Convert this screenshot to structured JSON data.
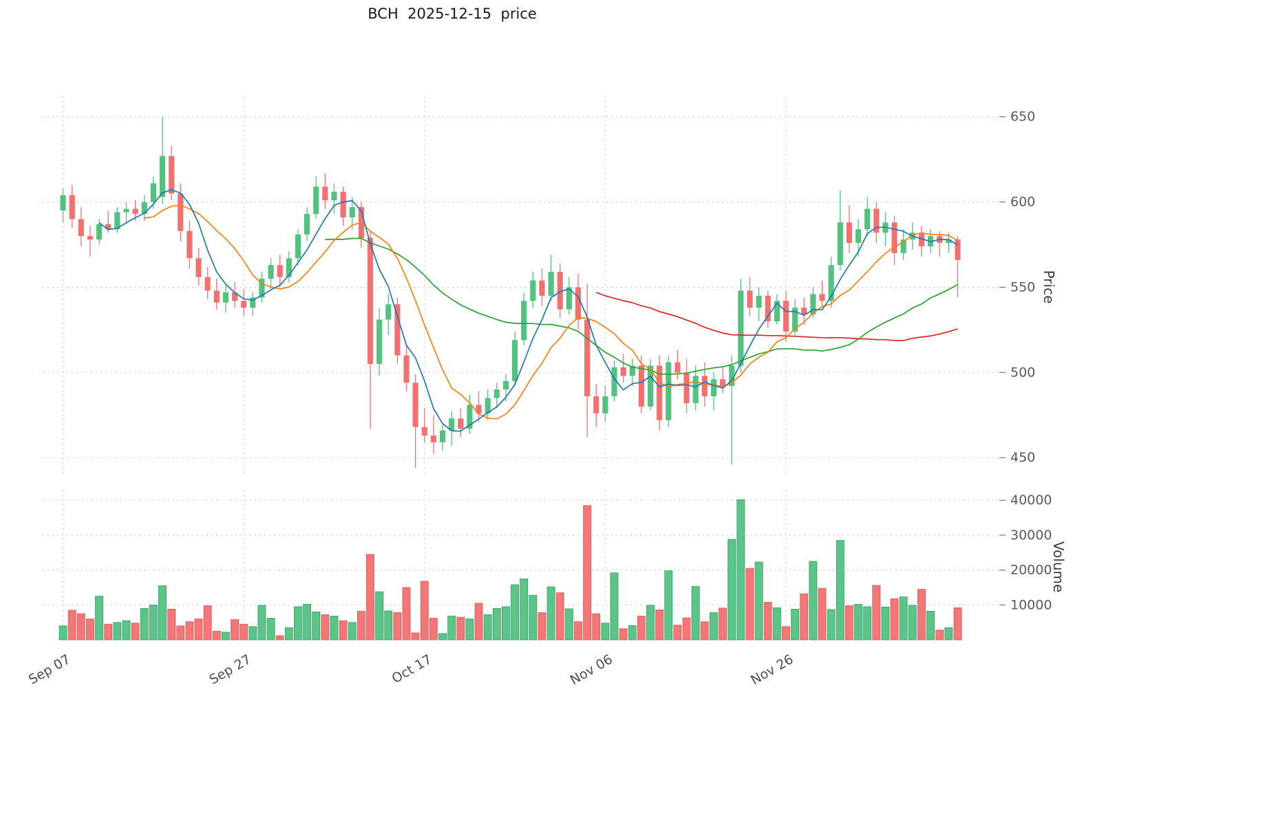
{
  "title": "BCH  2025-12-15  price",
  "colors": {
    "background": "#ffffff",
    "up": "#53c17f",
    "down": "#f37070",
    "up_edge": "#2a9d63",
    "down_edge": "#d25555",
    "grid": "#c9c9c9",
    "tick_text": "#595959",
    "ma_blue": "#1f77b4",
    "ma_orange": "#ff7f0e",
    "ma_green": "#2ca02c",
    "ma_red": "#d62728"
  },
  "chart_data": {
    "type": "candlestick",
    "title": "BCH  2025-12-15  price",
    "symbol": "BCH",
    "as_of": "2025-12-15",
    "start_date": "2025-09-07",
    "end_date": "2025-12-15",
    "freq": "daily",
    "price_axis": {
      "label": "Price",
      "ticks": [
        450,
        500,
        550,
        600,
        650
      ],
      "range": [
        440,
        662
      ]
    },
    "volume_axis": {
      "label": "Volume",
      "ticks": [
        10000,
        20000,
        30000,
        40000
      ],
      "range": [
        0,
        43000
      ]
    },
    "x_axis": {
      "ticks": [
        {
          "label": "Sep 07",
          "index": 0
        },
        {
          "label": "Sep 27",
          "index": 20
        },
        {
          "label": "Oct 17",
          "index": 40
        },
        {
          "label": "Nov 06",
          "index": 60
        },
        {
          "label": "Nov 26",
          "index": 80
        }
      ]
    },
    "moving_averages": {
      "windows": [
        5,
        10,
        30,
        60
      ],
      "colors": [
        "#1f77b4",
        "#ff7f0e",
        "#2ca02c",
        "#d62728"
      ]
    },
    "ohlc": [
      [
        595,
        608,
        588,
        604
      ],
      [
        604,
        610,
        585,
        590
      ],
      [
        590,
        597,
        574,
        580
      ],
      [
        580,
        586,
        568,
        578
      ],
      [
        578,
        590,
        575,
        587
      ],
      [
        587,
        595,
        582,
        584
      ],
      [
        584,
        597,
        582,
        594
      ],
      [
        594,
        600,
        587,
        596
      ],
      [
        596,
        601,
        589,
        593
      ],
      [
        593,
        604,
        589,
        600
      ],
      [
        600,
        615,
        596,
        611
      ],
      [
        603,
        650,
        599,
        627
      ],
      [
        627,
        633,
        601,
        605
      ],
      [
        605,
        611,
        577,
        583
      ],
      [
        583,
        589,
        561,
        567
      ],
      [
        567,
        573,
        551,
        556
      ],
      [
        556,
        562,
        543,
        548
      ],
      [
        548,
        555,
        537,
        541
      ],
      [
        541,
        551,
        535,
        547
      ],
      [
        547,
        553,
        538,
        542
      ],
      [
        542,
        549,
        533,
        538
      ],
      [
        538,
        547,
        533,
        544
      ],
      [
        544,
        559,
        541,
        555
      ],
      [
        555,
        567,
        549,
        563
      ],
      [
        563,
        569,
        550,
        556
      ],
      [
        556,
        571,
        553,
        567
      ],
      [
        567,
        584,
        563,
        581
      ],
      [
        581,
        597,
        577,
        593
      ],
      [
        593,
        615,
        590,
        609
      ],
      [
        609,
        617,
        596,
        601
      ],
      [
        601,
        611,
        593,
        606
      ],
      [
        606,
        609,
        586,
        591
      ],
      [
        591,
        603,
        584,
        597
      ],
      [
        597,
        600,
        573,
        579
      ],
      [
        579,
        583,
        467,
        505
      ],
      [
        505,
        538,
        498,
        531
      ],
      [
        531,
        546,
        522,
        540
      ],
      [
        540,
        544,
        505,
        510
      ],
      [
        510,
        517,
        489,
        494
      ],
      [
        494,
        499,
        444,
        468
      ],
      [
        468,
        479,
        459,
        463
      ],
      [
        463,
        475,
        452,
        459
      ],
      [
        459,
        469,
        454,
        466
      ],
      [
        466,
        477,
        457,
        473
      ],
      [
        473,
        479,
        462,
        467
      ],
      [
        467,
        487,
        464,
        481
      ],
      [
        481,
        489,
        471,
        476
      ],
      [
        476,
        490,
        472,
        485
      ],
      [
        485,
        494,
        479,
        490
      ],
      [
        490,
        499,
        483,
        495
      ],
      [
        495,
        524,
        492,
        519
      ],
      [
        519,
        547,
        516,
        542
      ],
      [
        542,
        559,
        538,
        554
      ],
      [
        554,
        561,
        539,
        545
      ],
      [
        545,
        569,
        542,
        559
      ],
      [
        559,
        564,
        532,
        537
      ],
      [
        537,
        556,
        534,
        550
      ],
      [
        550,
        558,
        525,
        531
      ],
      [
        531,
        552,
        462,
        486
      ],
      [
        486,
        493,
        468,
        476
      ],
      [
        476,
        492,
        471,
        486
      ],
      [
        486,
        507,
        483,
        503
      ],
      [
        503,
        511,
        494,
        498
      ],
      [
        498,
        508,
        492,
        504
      ],
      [
        504,
        510,
        476,
        480
      ],
      [
        480,
        508,
        478,
        504
      ],
      [
        504,
        510,
        466,
        472
      ],
      [
        472,
        510,
        468,
        506
      ],
      [
        506,
        513,
        496,
        500
      ],
      [
        500,
        508,
        476,
        482
      ],
      [
        482,
        504,
        478,
        498
      ],
      [
        498,
        506,
        480,
        486
      ],
      [
        486,
        500,
        478,
        496
      ],
      [
        496,
        503,
        488,
        492
      ],
      [
        492,
        510,
        446,
        504
      ],
      [
        504,
        555,
        500,
        548
      ],
      [
        548,
        556,
        533,
        538
      ],
      [
        538,
        550,
        530,
        545
      ],
      [
        545,
        548,
        526,
        530
      ],
      [
        530,
        546,
        528,
        542
      ],
      [
        542,
        548,
        518,
        524
      ],
      [
        524,
        543,
        522,
        538
      ],
      [
        538,
        544,
        528,
        534
      ],
      [
        534,
        550,
        532,
        546
      ],
      [
        546,
        554,
        538,
        542
      ],
      [
        542,
        568,
        538,
        563
      ],
      [
        563,
        607,
        560,
        588
      ],
      [
        588,
        598,
        570,
        576
      ],
      [
        576,
        590,
        568,
        584
      ],
      [
        584,
        603,
        580,
        596
      ],
      [
        596,
        600,
        576,
        582
      ],
      [
        582,
        594,
        574,
        588
      ],
      [
        588,
        592,
        563,
        570
      ],
      [
        570,
        584,
        566,
        578
      ],
      [
        578,
        588,
        572,
        582
      ],
      [
        582,
        586,
        568,
        574
      ],
      [
        574,
        584,
        570,
        580
      ],
      [
        580,
        583,
        568,
        576
      ],
      [
        576,
        582,
        570,
        578
      ],
      [
        578,
        580,
        544,
        566
      ]
    ],
    "volume": [
      4000,
      8500,
      7500,
      6000,
      12500,
      4500,
      5000,
      5500,
      4800,
      9000,
      10000,
      15500,
      8800,
      4000,
      5200,
      6000,
      9800,
      2500,
      2200,
      5800,
      4500,
      3800,
      9900,
      6200,
      1200,
      3500,
      9500,
      10200,
      8000,
      7200,
      6800,
      5500,
      5000,
      8200,
      24500,
      13800,
      8300,
      7800,
      15000,
      2000,
      16800,
      6200,
      1800,
      6800,
      6500,
      6000,
      10500,
      7200,
      9000,
      9500,
      15800,
      17500,
      12800,
      7800,
      15200,
      13500,
      8900,
      5200,
      38500,
      7500,
      4800,
      19200,
      3200,
      4100,
      6800,
      9900,
      8600,
      19800,
      4200,
      6300,
      15300,
      5200,
      7800,
      9100,
      28800,
      40200,
      20500,
      22300,
      10800,
      9200,
      3800,
      8800,
      13200,
      22500,
      14800,
      8700,
      28500,
      9800,
      10200,
      9500,
      15600,
      9400,
      11800,
      12300,
      9900,
      14500,
      8200,
      2800,
      3500,
      9200
    ]
  }
}
